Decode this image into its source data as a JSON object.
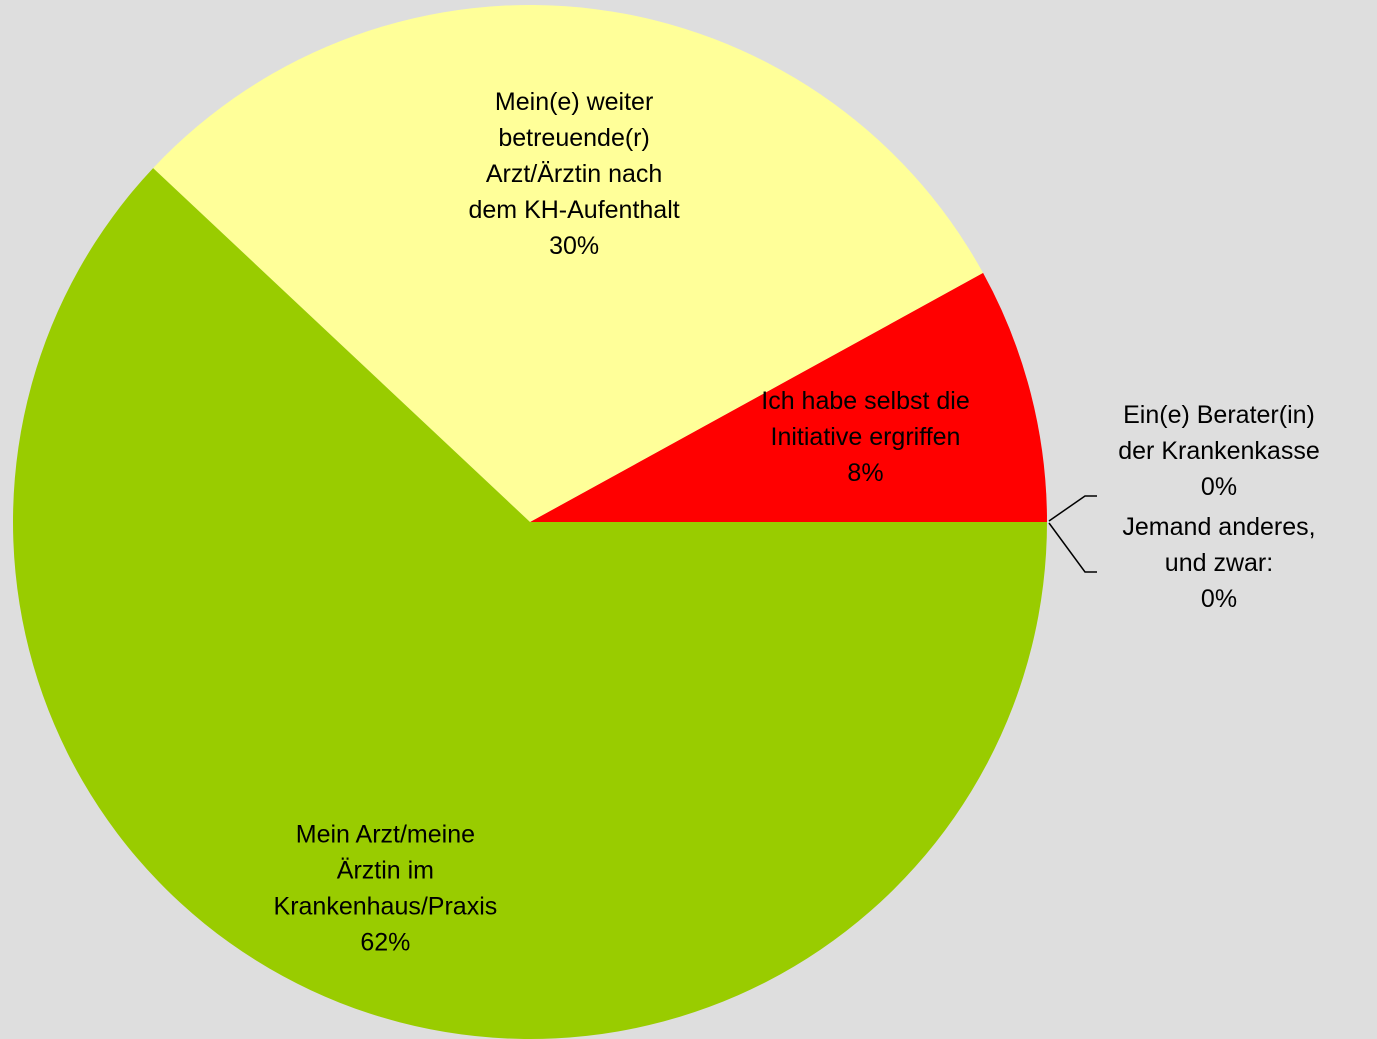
{
  "chart_data": {
    "type": "pie",
    "start": "3 o'clock",
    "direction": "counterclockwise",
    "slices": [
      {
        "label_lines": [
          "Ein(e) Berater(in)",
          "der Krankenkasse"
        ],
        "value": 0,
        "value_label": "0%",
        "color": "#cccccc",
        "label_position": "outside"
      },
      {
        "label_lines": [
          "Jemand anderes,",
          "und zwar:"
        ],
        "value": 0,
        "value_label": "0%",
        "color": "#cccccc",
        "label_position": "outside"
      },
      {
        "label_lines": [
          "Ich habe selbst die",
          "Initiative ergriffen"
        ],
        "value": 8,
        "value_label": "8%",
        "color": "#ff0000",
        "label_position": "inside"
      },
      {
        "label_lines": [
          "Mein(e) weiter",
          "betreuende(r)",
          "Arzt/Ärztin nach",
          "dem KH-Aufenthalt"
        ],
        "value": 30,
        "value_label": "30%",
        "color": "#ffff99",
        "label_position": "inside"
      },
      {
        "label_lines": [
          "Mein Arzt/meine",
          "Ärztin im",
          "Krankenhaus/Praxis"
        ],
        "value": 62,
        "value_label": "62%",
        "color": "#99cc00",
        "label_position": "inside"
      }
    ]
  }
}
